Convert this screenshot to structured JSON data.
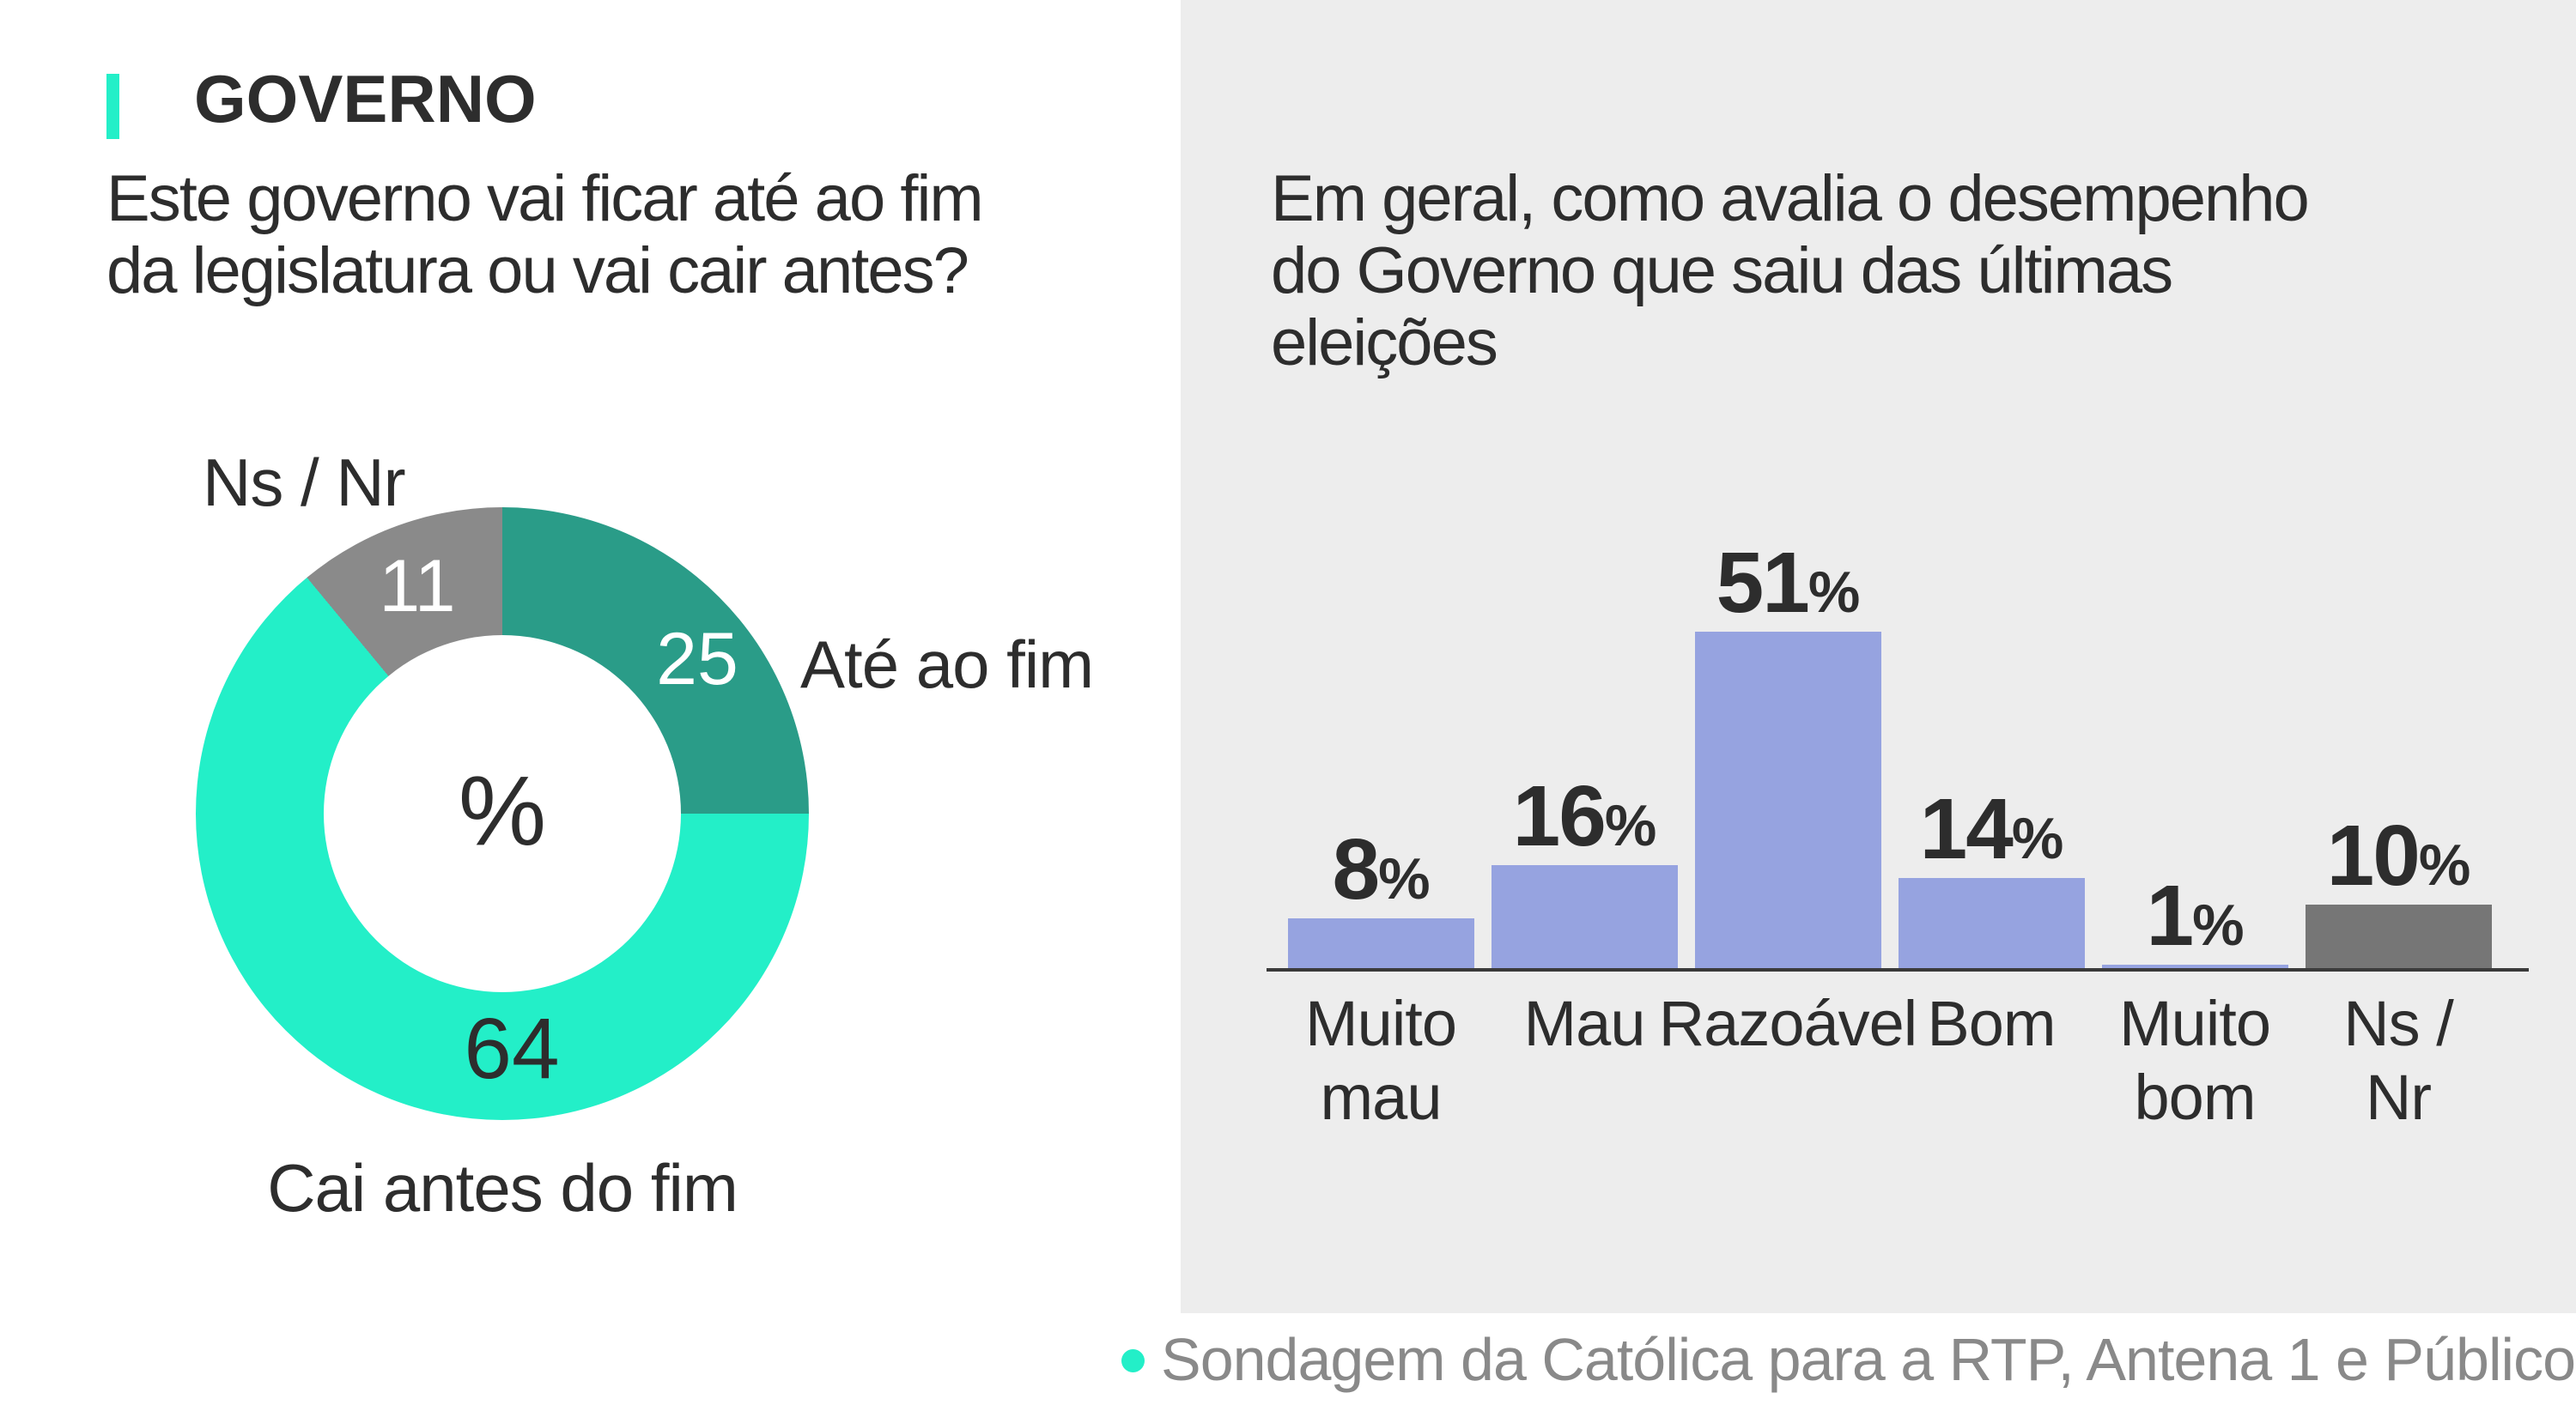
{
  "header": {
    "section_label": "GOVERNO",
    "accent_color": "#23EFC8"
  },
  "colors": {
    "right_panel_background": "#EDEDED",
    "text_dark": "#2D2D2D",
    "text_muted": "#898989",
    "axis": "#3A3A3A"
  },
  "source": {
    "text": "Sondagem da Católica para a RTP, Antena 1 e Público",
    "bullet_color": "#23EFC8"
  },
  "chart_data": [
    {
      "type": "pie",
      "subtype": "donut",
      "title": "Este governo vai ficar até ao fim\nda legislatura ou vai cair antes?",
      "unit": "%",
      "center_label": "%",
      "labels": [
        "Até ao fim",
        "Cai antes do fim",
        "Ns / Nr"
      ],
      "values": [
        25,
        64,
        11
      ],
      "colors": [
        "#2A9C88",
        "#23EFC8",
        "#8A8A8A"
      ],
      "value_label_colors": [
        "#FFFFFF",
        "#2D2D2D",
        "#FFFFFF"
      ],
      "start_angle_deg": 0,
      "direction": "clockwise",
      "legend_position": "around"
    },
    {
      "type": "bar",
      "title": "Em geral, como avalia o desempenho\ndo Governo que saiu das últimas\neleições",
      "unit": "%",
      "categories": [
        "Muito\nmau",
        "Mau",
        "Razoável",
        "Bom",
        "Muito\nbom",
        "Ns / Nr"
      ],
      "values": [
        8,
        16,
        51,
        14,
        1,
        10
      ],
      "bar_colors": [
        "#96A3E0",
        "#96A3E0",
        "#96A3E0",
        "#96A3E0",
        "#96A3E0",
        "#767676"
      ],
      "ylim": [
        0,
        55
      ],
      "grid": false,
      "value_labels": true,
      "legend_position": "none"
    }
  ]
}
